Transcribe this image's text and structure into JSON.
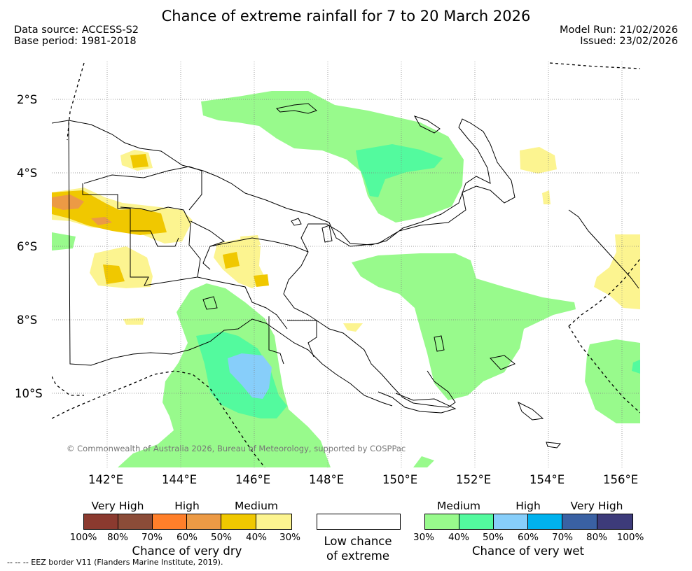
{
  "title": "Chance of extreme rainfall for 7 to 20 March 2026",
  "data_source": "Data source: ACCESS-S2",
  "base_period": "Base period: 1981-2018",
  "model_run": "Model Run: 21/02/2026",
  "issued": "Issued: 23/02/2026",
  "lat_labels": [
    "2°S",
    "4°S",
    "6°S",
    "8°S",
    "10°S"
  ],
  "lon_labels": [
    "142°E",
    "144°E",
    "146°E",
    "148°E",
    "150°E",
    "152°E",
    "154°E",
    "156°E"
  ],
  "copyright": "© Commonwealth of Australia 2026, Bureau of Meteorology, supported by COSPPac",
  "legend": {
    "dry": {
      "levels": [
        "Very High",
        "High",
        "Medium"
      ],
      "colors": [
        "#8b3a2f",
        "#8b4c38",
        "#ff7f2a",
        "#ec9a45",
        "#f0c800",
        "#fcf490"
      ],
      "ticks": [
        "100%",
        "80%",
        "70%",
        "60%",
        "50%",
        "40%",
        "30%"
      ],
      "caption": "Chance of very dry"
    },
    "low": {
      "caption_line1": "Low chance",
      "caption_line2": "of extreme",
      "color": "#ffffff"
    },
    "wet": {
      "levels": [
        "Medium",
        "High",
        "Very High"
      ],
      "colors": [
        "#98fa8c",
        "#53fa9e",
        "#87cefa",
        "#00b2ee",
        "#3a61a3",
        "#3d3b7a"
      ],
      "ticks": [
        "30%",
        "40%",
        "50%",
        "60%",
        "70%",
        "80%",
        "100%"
      ],
      "caption": "Chance of very wet"
    }
  },
  "footer": "--  --  -- EEZ border V11 (Flanders Marine Institute, 2019).",
  "colors": {
    "wet_medium": "#98fa8c",
    "wet_40": "#53fa9e",
    "wet_50": "#87cefa",
    "dry_30": "#fcf490",
    "dry_40": "#f0c800",
    "dry_60": "#ec9a45"
  }
}
